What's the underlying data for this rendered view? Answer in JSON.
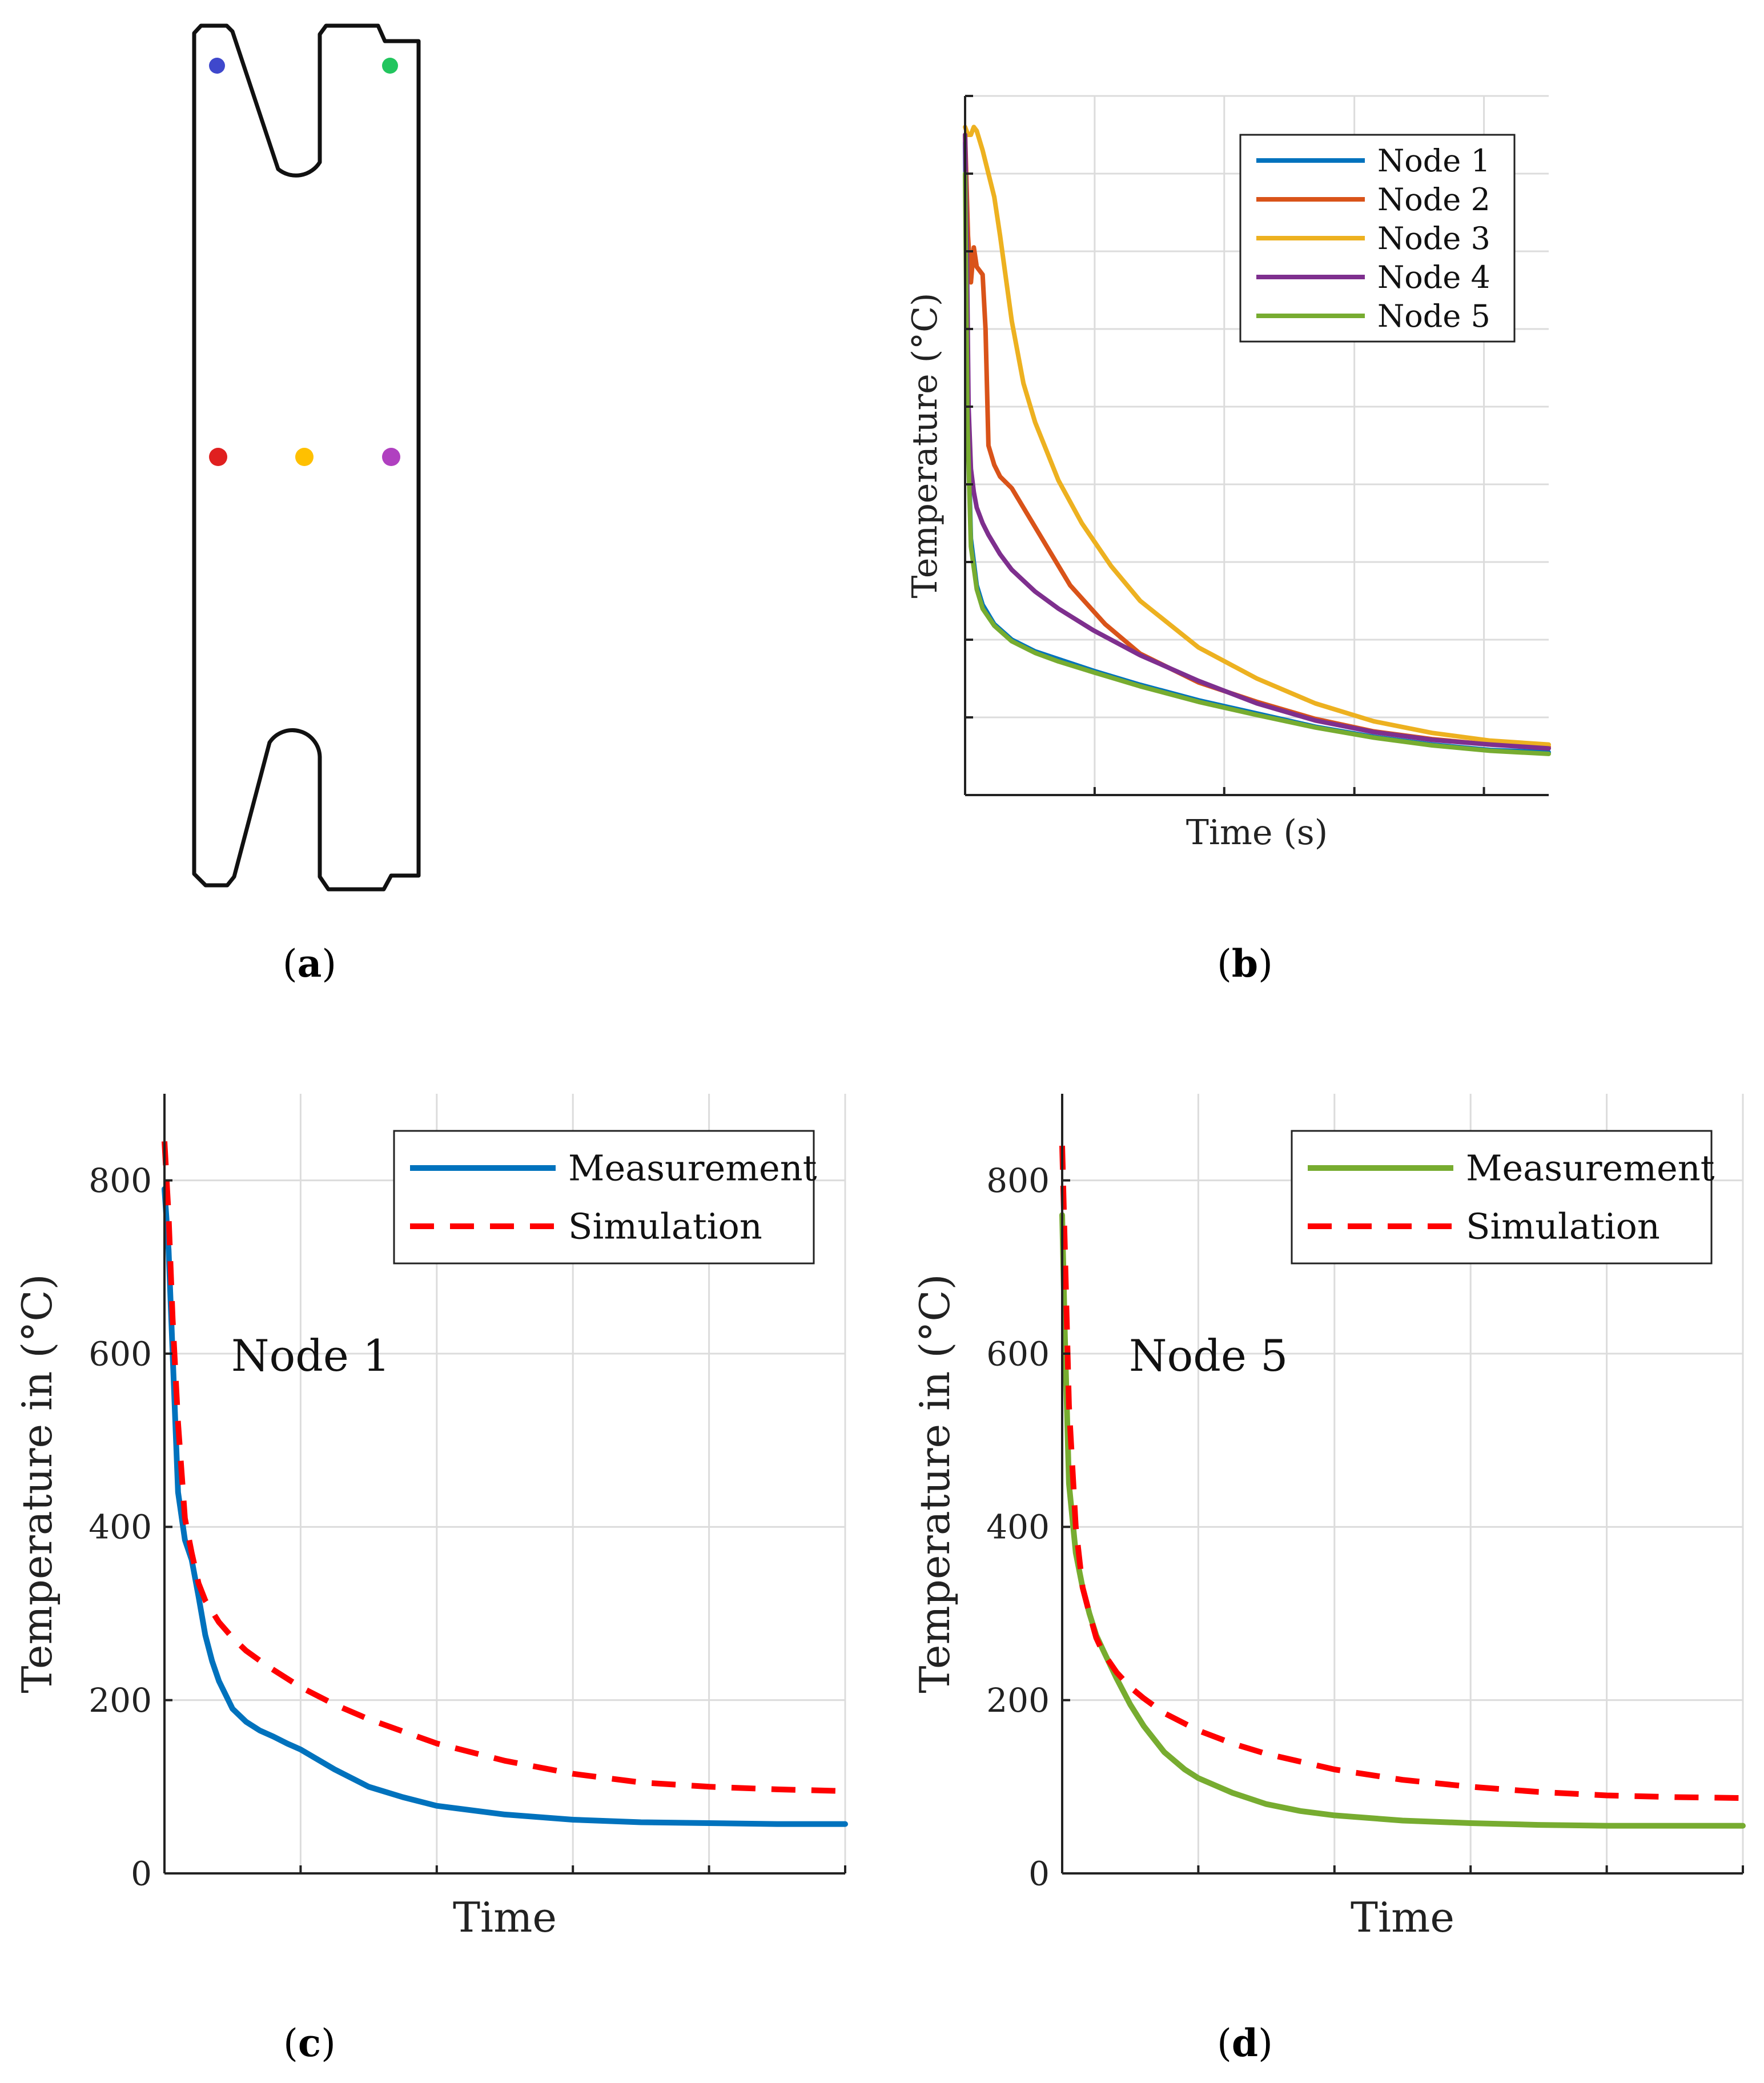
{
  "panel_labels": {
    "a": "a",
    "b": "b",
    "c": "c",
    "d": "d"
  },
  "specimen": {
    "nodes": [
      {
        "name": "Node 1",
        "color": "#3f48cc"
      },
      {
        "name": "Node 5",
        "color": "#22c55e"
      },
      {
        "name": "Node 2",
        "color": "#e02020"
      },
      {
        "name": "Node 3",
        "color": "#ffc000"
      },
      {
        "name": "Node 4",
        "color": "#b040c0"
      }
    ]
  },
  "chart_data": [
    {
      "id": "b",
      "type": "line",
      "title": "",
      "xlabel": "Time (s)",
      "ylabel": "Temperature (°C)",
      "xlim": [
        0,
        100
      ],
      "ylim": [
        0,
        900
      ],
      "xticks": [
        0,
        22.2,
        44.4,
        66.7,
        88.9
      ],
      "yticks": [
        100,
        200,
        300,
        400,
        500,
        600,
        700,
        800,
        900
      ],
      "show_tick_labels": false,
      "grid": true,
      "legend": "top-right",
      "series": [
        {
          "name": "Node 1",
          "color": "#0072BD",
          "dash": false,
          "x": [
            0,
            0.4,
            1,
            2,
            3,
            5,
            8,
            12,
            16,
            22,
            30,
            40,
            50,
            60,
            70,
            80,
            90,
            100
          ],
          "y": [
            840,
            500,
            330,
            270,
            245,
            220,
            200,
            185,
            175,
            160,
            142,
            122,
            105,
            88,
            75,
            65,
            58,
            55
          ]
        },
        {
          "name": "Node 2",
          "color": "#D95319",
          "dash": false,
          "x": [
            0,
            0.5,
            1,
            1.5,
            2,
            3,
            3.5,
            4,
            5,
            6,
            8,
            10,
            14,
            18,
            24,
            30,
            40,
            50,
            60,
            70,
            80,
            90,
            100
          ],
          "y": [
            850,
            720,
            660,
            705,
            680,
            670,
            600,
            450,
            425,
            410,
            395,
            370,
            320,
            270,
            220,
            182,
            145,
            120,
            98,
            82,
            72,
            65,
            62
          ]
        },
        {
          "name": "Node 3",
          "color": "#EDB120",
          "dash": false,
          "x": [
            0,
            0.5,
            1,
            1.5,
            2,
            3,
            4,
            5,
            6,
            8,
            10,
            12,
            16,
            20,
            25,
            30,
            40,
            50,
            60,
            70,
            80,
            90,
            100
          ],
          "y": [
            860,
            850,
            850,
            860,
            855,
            830,
            800,
            770,
            720,
            610,
            530,
            480,
            405,
            350,
            295,
            250,
            190,
            150,
            118,
            95,
            80,
            70,
            65
          ]
        },
        {
          "name": "Node 4",
          "color": "#7E2F8E",
          "dash": false,
          "x": [
            0,
            0.3,
            0.6,
            1,
            1.5,
            2,
            3,
            4,
            6,
            8,
            12,
            16,
            22,
            30,
            40,
            50,
            60,
            70,
            80,
            90,
            100
          ],
          "y": [
            850,
            700,
            500,
            420,
            390,
            370,
            350,
            335,
            310,
            290,
            262,
            240,
            212,
            180,
            147,
            118,
            96,
            81,
            71,
            65,
            60
          ]
        },
        {
          "name": "Node 5",
          "color": "#77AC30",
          "dash": false,
          "x": [
            0,
            0.4,
            1,
            2,
            3,
            5,
            8,
            12,
            16,
            22,
            30,
            40,
            50,
            60,
            70,
            80,
            90,
            100
          ],
          "y": [
            800,
            480,
            320,
            265,
            240,
            218,
            198,
            183,
            172,
            158,
            140,
            120,
            103,
            87,
            74,
            64,
            57,
            53
          ]
        }
      ]
    },
    {
      "id": "c",
      "type": "line",
      "title": "",
      "annotation": "Node 1",
      "xlabel": "Time",
      "ylabel": "Temperature in (°C)",
      "xlim": [
        0,
        100
      ],
      "ylim": [
        0,
        900
      ],
      "xticks": [
        20,
        40,
        60,
        80,
        100
      ],
      "yticks": [
        0,
        200,
        400,
        600,
        800
      ],
      "yticklabels": [
        "0",
        "200",
        "400",
        "600",
        "800"
      ],
      "show_tick_labels": true,
      "grid": true,
      "legend": "top-right",
      "series": [
        {
          "name": "Measurement",
          "color": "#0072BD",
          "dash": false,
          "x": [
            0,
            0.6,
            1.2,
            2,
            3,
            4,
            5,
            6,
            7,
            8,
            10,
            12,
            14,
            16,
            18,
            20,
            25,
            30,
            35,
            40,
            50,
            60,
            70,
            80,
            90,
            100
          ],
          "y": [
            790,
            720,
            600,
            440,
            385,
            362,
            320,
            275,
            245,
            222,
            190,
            175,
            165,
            158,
            150,
            143,
            120,
            100,
            88,
            78,
            68,
            62,
            59,
            58,
            57,
            57
          ]
        },
        {
          "name": "Simulation",
          "color": "#FF0000",
          "dash": true,
          "x": [
            0,
            0.6,
            1.2,
            2,
            3,
            4,
            5,
            6,
            8,
            10,
            12,
            15,
            20,
            25,
            30,
            40,
            50,
            60,
            70,
            80,
            90,
            100
          ],
          "y": [
            845,
            760,
            640,
            520,
            410,
            370,
            335,
            315,
            290,
            272,
            257,
            240,
            215,
            195,
            178,
            150,
            130,
            115,
            105,
            100,
            97,
            95
          ]
        }
      ]
    },
    {
      "id": "d",
      "type": "line",
      "title": "",
      "annotation": "Node 5",
      "xlabel": "Time",
      "ylabel": "Temperature in (°C)",
      "xlim": [
        0,
        100
      ],
      "ylim": [
        0,
        900
      ],
      "xticks": [
        20,
        40,
        60,
        80,
        100
      ],
      "yticks": [
        0,
        200,
        400,
        600,
        800
      ],
      "yticklabels": [
        "0",
        "200",
        "400",
        "600",
        "800"
      ],
      "show_tick_labels": true,
      "grid": true,
      "legend": "top-right",
      "series": [
        {
          "name": "Measurement",
          "color": "#77AC30",
          "dash": false,
          "x": [
            0,
            0.4,
            1,
            2,
            3,
            4,
            5,
            6,
            8,
            10,
            12,
            15,
            18,
            20,
            25,
            30,
            35,
            40,
            50,
            60,
            70,
            80,
            90,
            100
          ],
          "y": [
            760,
            620,
            450,
            370,
            330,
            300,
            275,
            258,
            225,
            195,
            170,
            140,
            120,
            110,
            93,
            80,
            72,
            67,
            61,
            58,
            56,
            55,
            55,
            55
          ]
        },
        {
          "name": "Simulation",
          "color": "#FF0000",
          "dash": true,
          "x": [
            0,
            0.4,
            1,
            2,
            3,
            4,
            5,
            6,
            8,
            10,
            12,
            15,
            20,
            25,
            30,
            40,
            50,
            60,
            70,
            80,
            90,
            100
          ],
          "y": [
            840,
            720,
            540,
            400,
            330,
            300,
            272,
            255,
            232,
            215,
            202,
            185,
            165,
            150,
            138,
            120,
            108,
            100,
            94,
            90,
            88,
            87
          ]
        }
      ]
    }
  ]
}
